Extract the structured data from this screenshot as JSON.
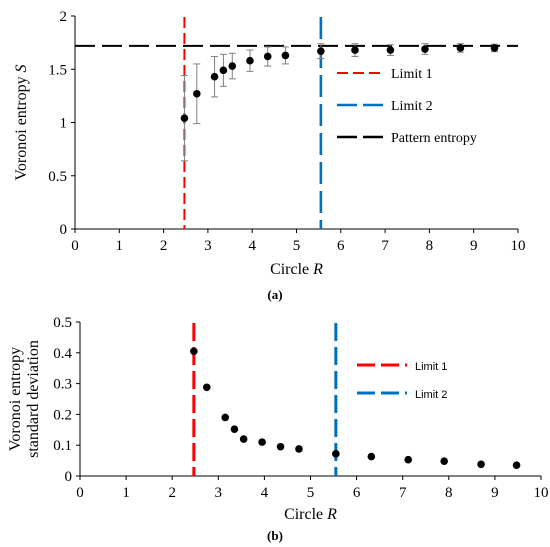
{
  "chart_data": [
    {
      "type": "scatter",
      "panel_label": "(a)",
      "title": "",
      "xlabel": "Circle R",
      "ylabel": "Voronoi entropy S",
      "xlim": [
        0,
        10
      ],
      "ylim": [
        0,
        2
      ],
      "x_ticks": [
        "0",
        "1",
        "2",
        "3",
        "4",
        "5",
        "6",
        "7",
        "8",
        "9",
        "10"
      ],
      "y_ticks": [
        "0",
        "0.5",
        "1",
        "1.5",
        "2"
      ],
      "grid": false,
      "legend_position": "right",
      "series": [
        {
          "x": [
            2.47,
            2.75,
            3.15,
            3.35,
            3.55,
            3.95,
            4.35,
            4.75,
            5.55,
            6.32,
            7.12,
            7.9,
            8.7,
            9.47
          ],
          "y": [
            1.04,
            1.27,
            1.43,
            1.49,
            1.53,
            1.58,
            1.62,
            1.63,
            1.67,
            1.68,
            1.68,
            1.69,
            1.7,
            1.7
          ],
          "error": [
            0.4,
            0.28,
            0.19,
            0.15,
            0.12,
            0.1,
            0.09,
            0.08,
            0.07,
            0.06,
            0.05,
            0.05,
            0.04,
            0.035
          ]
        }
      ],
      "reference_lines": [
        {
          "name": "Limit 1",
          "orientation": "vertical",
          "value": 2.47,
          "color": "#ff0000",
          "style": "dashed"
        },
        {
          "name": "Limit 2",
          "orientation": "vertical",
          "value": 5.55,
          "color": "#0070c0",
          "style": "long-dashed"
        },
        {
          "name": "Pattern entropy",
          "orientation": "horizontal",
          "value": 1.72,
          "color": "#000000",
          "style": "long-dashed"
        }
      ],
      "legend": [
        "Limit 1",
        "Limit 2",
        "Pattern entropy"
      ]
    },
    {
      "type": "scatter",
      "panel_label": "(b)",
      "title": "",
      "xlabel": "Circle R",
      "ylabel": [
        "Voronoi entropy",
        "standard deviation"
      ],
      "xlim": [
        0,
        10
      ],
      "ylim": [
        0,
        0.5
      ],
      "x_ticks": [
        "0",
        "1",
        "2",
        "3",
        "4",
        "5",
        "6",
        "7",
        "8",
        "9",
        "10"
      ],
      "y_ticks": [
        "0",
        "0.1",
        "0.2",
        "0.3",
        "0.4",
        "0.5"
      ],
      "grid": false,
      "legend_position": "right",
      "series": [
        {
          "x": [
            2.47,
            2.75,
            3.15,
            3.35,
            3.55,
            3.95,
            4.35,
            4.75,
            5.55,
            6.32,
            7.12,
            7.9,
            8.7,
            9.47
          ],
          "y": [
            0.405,
            0.288,
            0.19,
            0.152,
            0.12,
            0.11,
            0.095,
            0.088,
            0.072,
            0.063,
            0.053,
            0.048,
            0.038,
            0.035
          ]
        }
      ],
      "reference_lines": [
        {
          "name": "Limit 1",
          "orientation": "vertical",
          "value": 2.47,
          "color": "#ff0000",
          "style": "dashed"
        },
        {
          "name": "Limit 2",
          "orientation": "vertical",
          "value": 5.55,
          "color": "#0070c0",
          "style": "dashed"
        }
      ],
      "legend": [
        "Limit 1",
        "Limit 2"
      ]
    }
  ]
}
